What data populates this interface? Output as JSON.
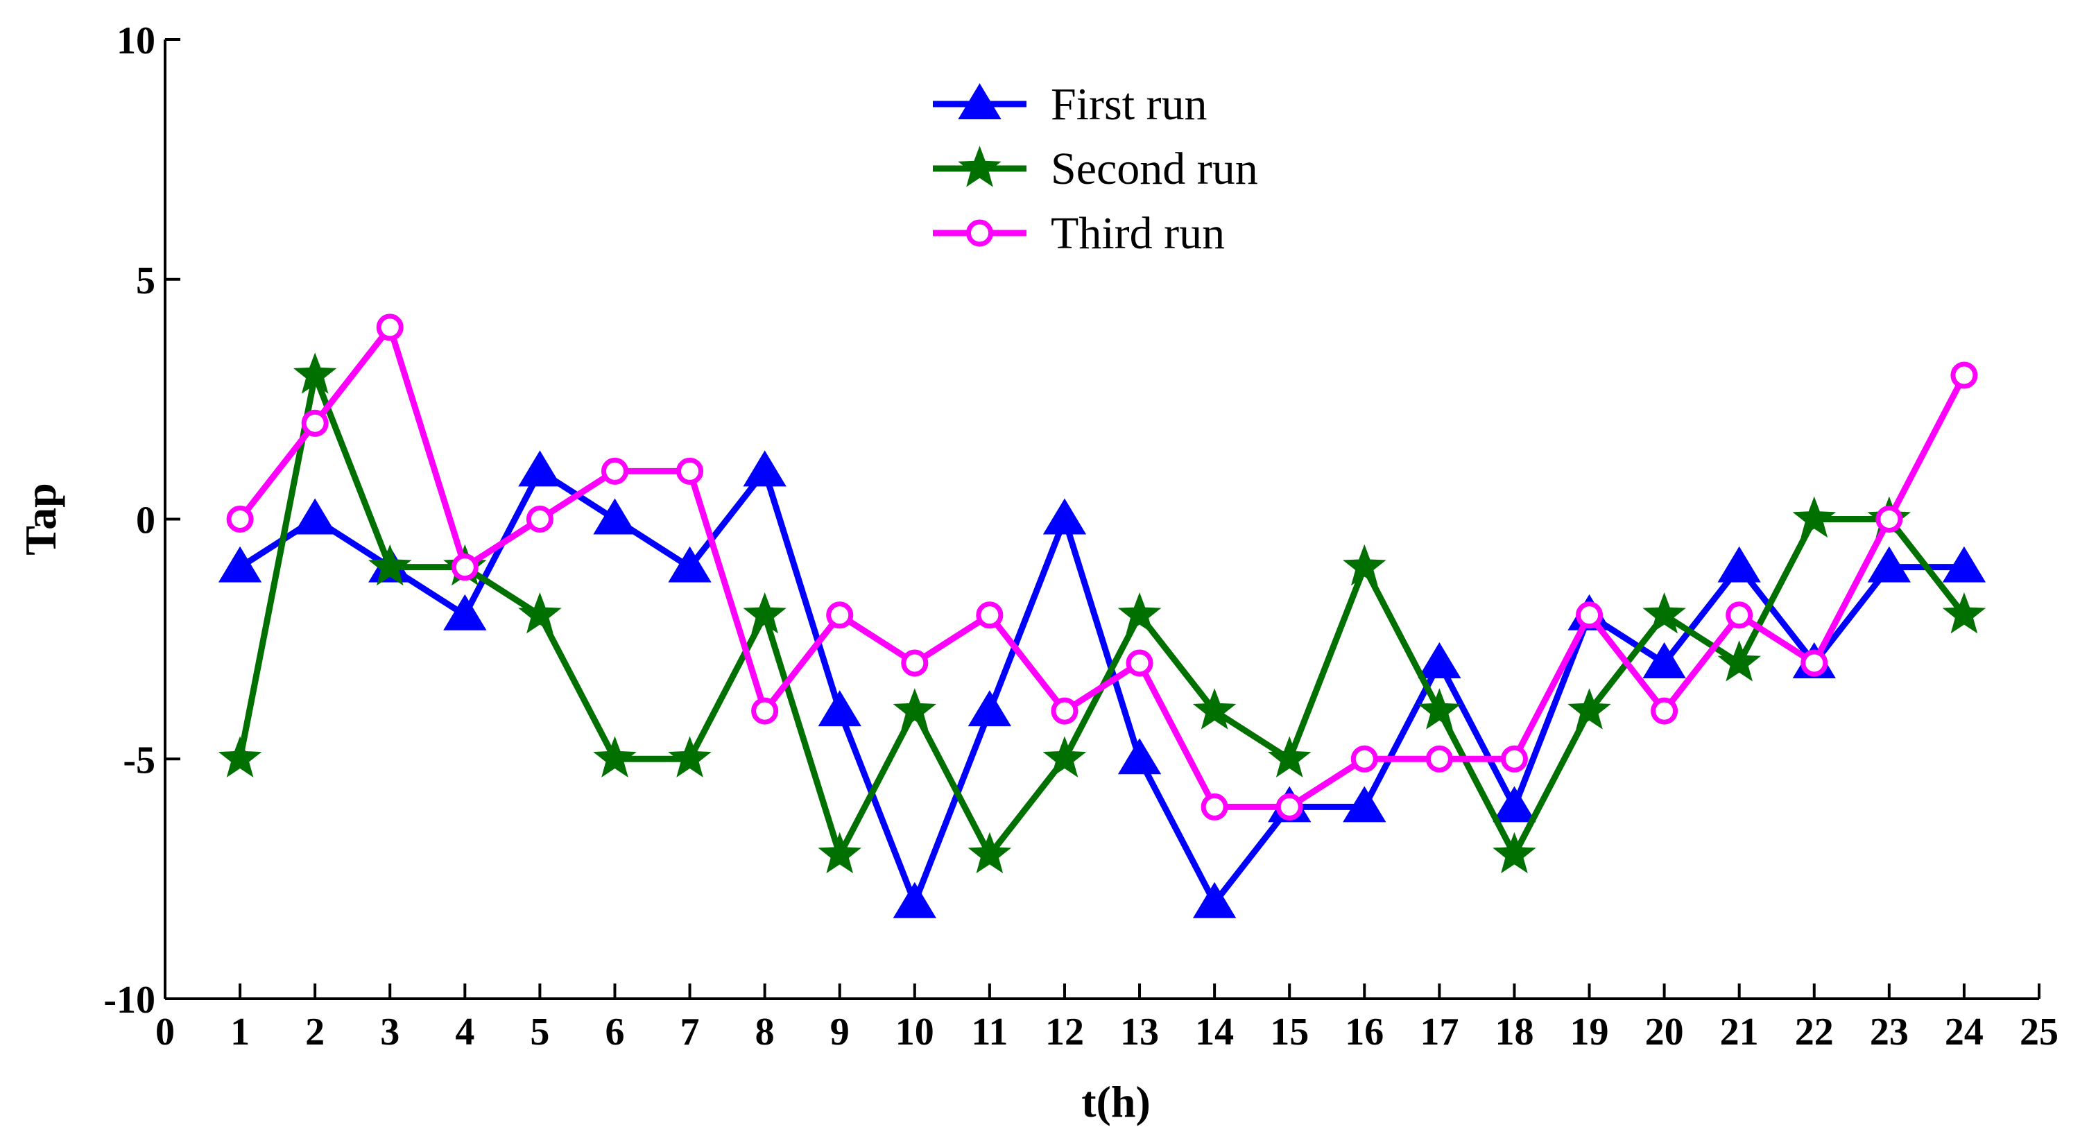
{
  "chart_data": {
    "type": "line",
    "title": "",
    "xlabel": "t(h)",
    "ylabel": "Tap",
    "xlim": [
      0,
      25
    ],
    "ylim": [
      -10,
      10
    ],
    "xticks": [
      0,
      1,
      2,
      3,
      4,
      5,
      6,
      7,
      8,
      9,
      10,
      11,
      12,
      13,
      14,
      15,
      16,
      17,
      18,
      19,
      20,
      21,
      22,
      23,
      24,
      25
    ],
    "yticks": [
      10,
      5,
      0,
      -5,
      -10
    ],
    "grid": false,
    "legend_position": "top-center",
    "x": [
      1,
      2,
      3,
      4,
      5,
      6,
      7,
      8,
      9,
      10,
      11,
      12,
      13,
      14,
      15,
      16,
      17,
      18,
      19,
      20,
      21,
      22,
      23,
      24
    ],
    "series": [
      {
        "name": "First run",
        "color": "#0000ff",
        "marker": "triangle",
        "values": [
          -1,
          0,
          -1,
          -2,
          1,
          0,
          -1,
          1,
          -4,
          -8,
          -4,
          0,
          -5,
          -8,
          -6,
          -6,
          -3,
          -6,
          -2,
          -3,
          -1,
          -3,
          -1,
          -1
        ]
      },
      {
        "name": "Second run",
        "color": "#007000",
        "marker": "star",
        "values": [
          -5,
          3,
          -1,
          -1,
          -2,
          -5,
          -5,
          -2,
          -7,
          -4,
          -7,
          -5,
          -2,
          -4,
          -5,
          -1,
          -4,
          -7,
          -4,
          -2,
          -3,
          0,
          0,
          -2
        ]
      },
      {
        "name": "Third run",
        "color": "#ff00ff",
        "marker": "circle",
        "values": [
          0,
          2,
          4,
          -1,
          0,
          1,
          1,
          -4,
          -2,
          -3,
          -2,
          -4,
          -3,
          -6,
          -6,
          -5,
          -5,
          -5,
          -2,
          -4,
          -2,
          -3,
          0,
          3
        ]
      }
    ]
  }
}
